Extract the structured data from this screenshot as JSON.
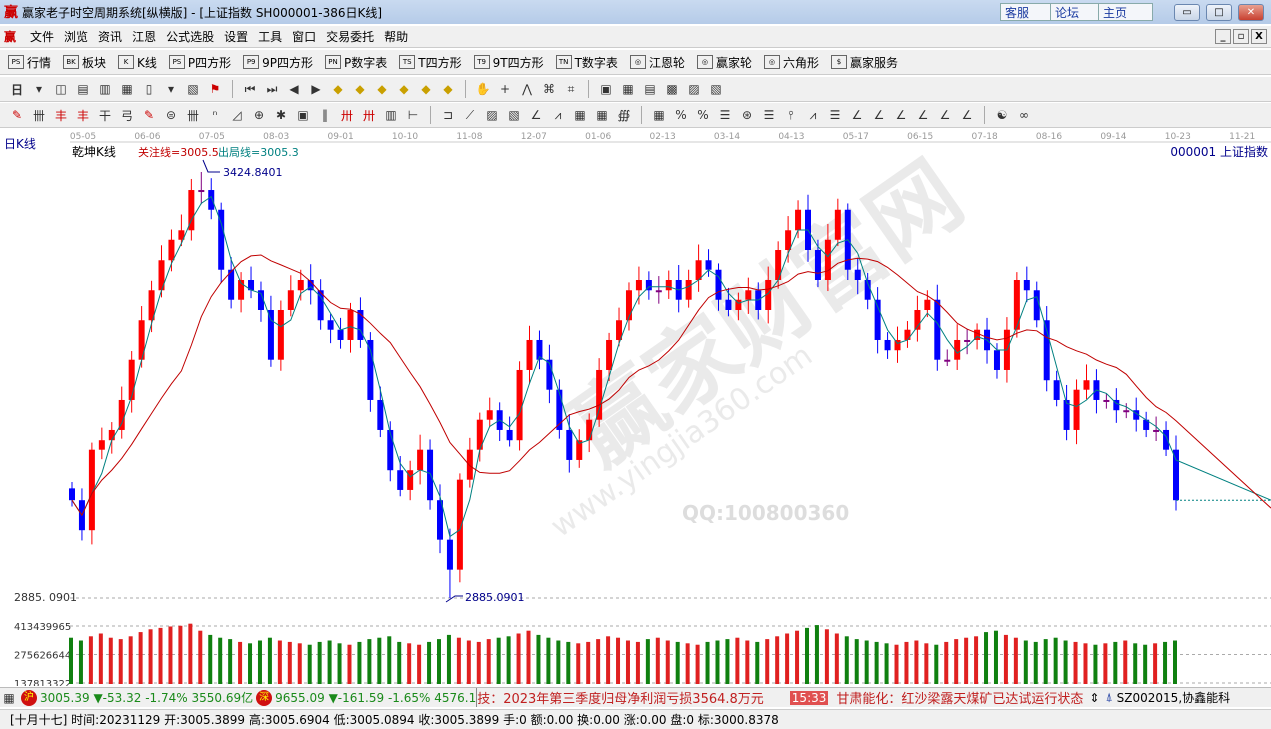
{
  "window": {
    "logo": "赢",
    "title": "赢家老子时空周期系统[纵横版] - [上证指数  SH000001-386日K线]",
    "buttons": [
      "客服",
      "论坛",
      "主页"
    ]
  },
  "menu": [
    "文件",
    "浏览",
    "资讯",
    "江恩",
    "公式选股",
    "设置",
    "工具",
    "窗口",
    "交易委托",
    "帮助"
  ],
  "toolbar1": [
    {
      "icon": "PS",
      "label": "行情"
    },
    {
      "icon": "BK",
      "label": "板块"
    },
    {
      "icon": "K",
      "label": "K线"
    },
    {
      "icon": "PS",
      "label": "P四方形"
    },
    {
      "icon": "P9",
      "label": "9P四方形"
    },
    {
      "icon": "PN",
      "label": "P数字表"
    },
    {
      "icon": "TS",
      "label": "T四方形"
    },
    {
      "icon": "T9",
      "label": "9T四方形"
    },
    {
      "icon": "TN",
      "label": "T数字表"
    },
    {
      "icon": "◎",
      "label": "江恩轮"
    },
    {
      "icon": "◎",
      "label": "赢家轮"
    },
    {
      "icon": "◎",
      "label": "六角形"
    },
    {
      "icon": "$",
      "label": "赢家服务"
    }
  ],
  "toolbar2": {
    "period": "日"
  },
  "chart_header": {
    "period_label": "日K线",
    "indicator": "乾坤K线",
    "focus_line": "关注线=3005.5",
    "exit_line": "出局线=3005.3",
    "symbol": "000001  上证指数"
  },
  "colors": {
    "up": "#ff0000",
    "down": "#0000ff",
    "neutral": "#800080",
    "ma_short": "#008080",
    "ma_long": "#c00000",
    "vol_up": "#e02020",
    "vol_down": "#108010"
  },
  "chart_data": {
    "type": "candlestick",
    "x_ticks": [
      "05-05",
      "06-06",
      "07-05",
      "08-03",
      "09-01",
      "10-10",
      "11-08",
      "12-07",
      "01-06",
      "02-13",
      "03-14",
      "04-13",
      "05-17",
      "06-15",
      "07-18",
      "08-16",
      "09-14",
      "10-23",
      "11-21"
    ],
    "price_range": [
      2885.0901,
      3424.8401
    ],
    "max_label": "3424.8401",
    "min_label": "2885.0901",
    "axis_min_label": "2885. 0901",
    "volume_ticks": [
      "413439965",
      "275626644",
      "137813322"
    ],
    "closes": [
      3009,
      2971,
      3073,
      3085,
      3098,
      3136,
      3187,
      3237,
      3275,
      3313,
      3339,
      3351,
      3402,
      3402,
      3377,
      3301,
      3263,
      3288,
      3275,
      3250,
      3187,
      3250,
      3275,
      3288,
      3275,
      3237,
      3225,
      3212,
      3250,
      3212,
      3136,
      3098,
      3047,
      3022,
      3047,
      3073,
      3009,
      2959,
      2921,
      3035,
      3073,
      3111,
      3123,
      3098,
      3085,
      3174,
      3212,
      3187,
      3149,
      3098,
      3060,
      3085,
      3111,
      3174,
      3212,
      3237,
      3275,
      3288,
      3275,
      3275,
      3288,
      3263,
      3288,
      3313,
      3301,
      3263,
      3250,
      3263,
      3275,
      3250,
      3288,
      3326,
      3351,
      3377,
      3326,
      3288,
      3339,
      3377,
      3301,
      3288,
      3263,
      3212,
      3199,
      3212,
      3225,
      3250,
      3263,
      3187,
      3187,
      3212,
      3212,
      3225,
      3199,
      3174,
      3225,
      3288,
      3275,
      3237,
      3161,
      3136,
      3098,
      3149,
      3161,
      3136,
      3136,
      3123,
      3123,
      3111,
      3098,
      3098,
      3073,
      3009
    ],
    "volumes": [
      330,
      310,
      340,
      360,
      330,
      320,
      340,
      370,
      390,
      400,
      410,
      415,
      430,
      380,
      350,
      330,
      320,
      300,
      290,
      310,
      330,
      310,
      300,
      290,
      280,
      300,
      310,
      290,
      280,
      300,
      320,
      330,
      340,
      300,
      290,
      280,
      300,
      320,
      350,
      330,
      310,
      300,
      320,
      330,
      340,
      360,
      380,
      350,
      330,
      310,
      300,
      290,
      300,
      320,
      340,
      330,
      310,
      300,
      320,
      330,
      310,
      300,
      290,
      280,
      300,
      310,
      320,
      330,
      310,
      300,
      320,
      340,
      360,
      380,
      400,
      420,
      390,
      360,
      340,
      320,
      310,
      300,
      290,
      280,
      300,
      310,
      290,
      280,
      300,
      320,
      330,
      340,
      370,
      380,
      350,
      330,
      310,
      300,
      320,
      330,
      310,
      300,
      290,
      280,
      290,
      300,
      310,
      290,
      280,
      290,
      300,
      310
    ]
  },
  "watermark": {
    "text": "赢家财富网",
    "url": "www.yingjia360.com",
    "qq": "QQ:100800360"
  },
  "status1": {
    "sh_badge": "沪",
    "sh_price": "3005.39",
    "sh_change": "▼-53.32",
    "sh_pct": "-1.74%",
    "sh_amount": "3550.69亿",
    "sz_badge": "深",
    "sz_price": "9655.09",
    "sz_change": "▼-161.59",
    "sz_pct": "-1.65%",
    "sz_amount": "4576.1",
    "news1": "技：2023年第三季度归母净利润亏损3564.8万元",
    "time": "15:33",
    "news2": "甘肃能化：红沙梁露天煤矿已达试运行状态",
    "stock": "SZ002015,协鑫能科"
  },
  "status2": "[十月十七] 时间:20231129 开:3005.3899 高:3005.6904 低:3005.0894 收:3005.3899 手:0 额:0.00 换:0.00 涨:0.00 盘:0 标:3000.8378"
}
